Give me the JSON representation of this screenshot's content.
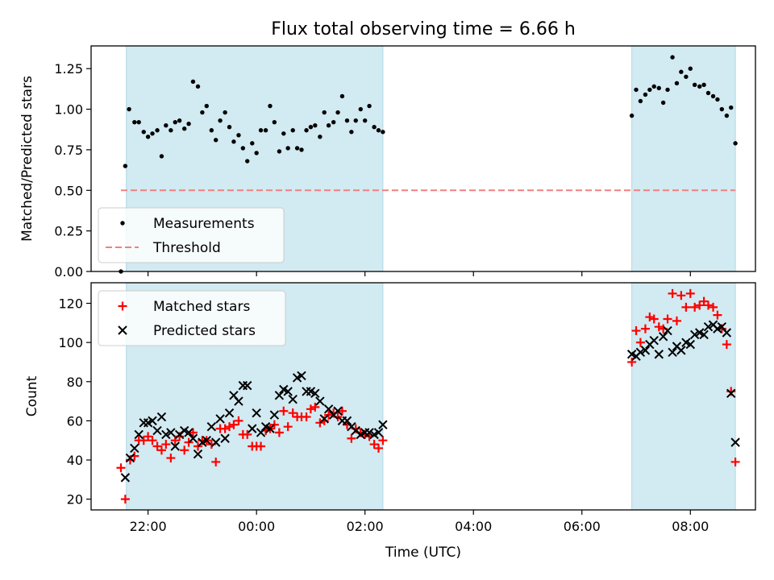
{
  "title": "Flux total observing time = 6.66 h",
  "colors": {
    "shade": "#add8e6",
    "measurement": "#000000",
    "threshold": "#f08080",
    "matched": "#ff0000",
    "predicted": "#000000"
  },
  "x_axis": {
    "label": "Time (UTC)",
    "unit": "hours since 00:00 UTC (negative = previous day)",
    "range": [
      -3.05,
      9.2
    ],
    "ticks": [
      {
        "value": -2,
        "label": "22:00"
      },
      {
        "value": 0,
        "label": "00:00"
      },
      {
        "value": 2,
        "label": "02:00"
      },
      {
        "value": 4,
        "label": "04:00"
      },
      {
        "value": 6,
        "label": "06:00"
      },
      {
        "value": 8,
        "label": "08:00"
      }
    ]
  },
  "shaded_intervals": [
    [
      -2.4,
      2.33
    ],
    [
      6.92,
      8.83
    ]
  ],
  "chart_data": [
    {
      "type": "scatter",
      "title": "Flux total observing time = 6.66 h",
      "ylabel": "Matched/Predicted stars",
      "xlabel": "",
      "ylim": [
        0,
        1.39
      ],
      "yticks": [
        "0.00",
        "0.25",
        "0.50",
        "0.75",
        "1.00",
        "1.25"
      ],
      "legend": {
        "position": "lower-left",
        "entries": [
          "Measurements",
          "Threshold"
        ]
      },
      "threshold": {
        "name": "Threshold",
        "value": 0.5,
        "x_range": [
          -2.5,
          8.83
        ]
      },
      "series": [
        {
          "name": "Measurements",
          "marker": "dot",
          "points": [
            [
              -2.5,
              0.0
            ],
            [
              -2.42,
              0.65
            ],
            [
              -2.35,
              1.0
            ],
            [
              -2.25,
              0.92
            ],
            [
              -2.17,
              0.92
            ],
            [
              -2.08,
              0.86
            ],
            [
              -2.0,
              0.83
            ],
            [
              -1.92,
              0.85
            ],
            [
              -1.83,
              0.87
            ],
            [
              -1.75,
              0.71
            ],
            [
              -1.67,
              0.9
            ],
            [
              -1.58,
              0.87
            ],
            [
              -1.5,
              0.92
            ],
            [
              -1.42,
              0.93
            ],
            [
              -1.33,
              0.88
            ],
            [
              -1.25,
              0.91
            ],
            [
              -1.17,
              1.17
            ],
            [
              -1.08,
              1.14
            ],
            [
              -1.0,
              0.98
            ],
            [
              -0.92,
              1.02
            ],
            [
              -0.83,
              0.87
            ],
            [
              -0.75,
              0.81
            ],
            [
              -0.67,
              0.93
            ],
            [
              -0.58,
              0.98
            ],
            [
              -0.5,
              0.89
            ],
            [
              -0.42,
              0.8
            ],
            [
              -0.33,
              0.84
            ],
            [
              -0.25,
              0.76
            ],
            [
              -0.17,
              0.68
            ],
            [
              -0.08,
              0.79
            ],
            [
              0.0,
              0.73
            ],
            [
              0.08,
              0.87
            ],
            [
              0.17,
              0.87
            ],
            [
              0.25,
              1.02
            ],
            [
              0.33,
              0.92
            ],
            [
              0.42,
              0.74
            ],
            [
              0.5,
              0.85
            ],
            [
              0.58,
              0.76
            ],
            [
              0.67,
              0.87
            ],
            [
              0.75,
              0.76
            ],
            [
              0.83,
              0.75
            ],
            [
              0.92,
              0.87
            ],
            [
              1.0,
              0.89
            ],
            [
              1.08,
              0.9
            ],
            [
              1.17,
              0.83
            ],
            [
              1.25,
              0.98
            ],
            [
              1.33,
              0.9
            ],
            [
              1.42,
              0.92
            ],
            [
              1.5,
              0.98
            ],
            [
              1.58,
              1.08
            ],
            [
              1.67,
              0.93
            ],
            [
              1.75,
              0.86
            ],
            [
              1.83,
              0.93
            ],
            [
              1.92,
              1.0
            ],
            [
              2.0,
              0.93
            ],
            [
              2.08,
              1.02
            ],
            [
              2.17,
              0.89
            ],
            [
              2.25,
              0.87
            ],
            [
              2.33,
              0.86
            ],
            [
              6.92,
              0.96
            ],
            [
              7.0,
              1.12
            ],
            [
              7.08,
              1.05
            ],
            [
              7.17,
              1.09
            ],
            [
              7.25,
              1.12
            ],
            [
              7.33,
              1.14
            ],
            [
              7.42,
              1.13
            ],
            [
              7.5,
              1.04
            ],
            [
              7.58,
              1.12
            ],
            [
              7.67,
              1.32
            ],
            [
              7.75,
              1.16
            ],
            [
              7.83,
              1.23
            ],
            [
              7.92,
              1.2
            ],
            [
              8.0,
              1.25
            ],
            [
              8.08,
              1.15
            ],
            [
              8.17,
              1.14
            ],
            [
              8.25,
              1.15
            ],
            [
              8.33,
              1.1
            ],
            [
              8.42,
              1.08
            ],
            [
              8.5,
              1.06
            ],
            [
              8.58,
              1.0
            ],
            [
              8.67,
              0.96
            ],
            [
              8.75,
              1.01
            ],
            [
              8.83,
              0.79
            ]
          ]
        }
      ]
    },
    {
      "type": "scatter",
      "title": "",
      "ylabel": "Count",
      "xlabel": "Time (UTC)",
      "ylim": [
        14.5,
        130.5
      ],
      "yticks": [
        "20",
        "40",
        "60",
        "80",
        "100",
        "120"
      ],
      "legend": {
        "position": "top-left",
        "entries": [
          "Matched stars",
          "Predicted stars"
        ]
      },
      "series": [
        {
          "name": "Matched stars",
          "marker": "plus",
          "points": [
            [
              -2.5,
              36
            ],
            [
              -2.42,
              20
            ],
            [
              -2.33,
              40
            ],
            [
              -2.25,
              42
            ],
            [
              -2.17,
              50
            ],
            [
              -2.08,
              50
            ],
            [
              -2.0,
              52
            ],
            [
              -1.92,
              50
            ],
            [
              -1.83,
              47
            ],
            [
              -1.75,
              45
            ],
            [
              -1.67,
              48
            ],
            [
              -1.58,
              41
            ],
            [
              -1.5,
              50
            ],
            [
              -1.42,
              52
            ],
            [
              -1.33,
              45
            ],
            [
              -1.25,
              49
            ],
            [
              -1.17,
              54
            ],
            [
              -1.08,
              47
            ],
            [
              -1.0,
              50
            ],
            [
              -0.92,
              50
            ],
            [
              -0.83,
              48
            ],
            [
              -0.75,
              39
            ],
            [
              -0.67,
              56
            ],
            [
              -0.58,
              56
            ],
            [
              -0.5,
              57
            ],
            [
              -0.42,
              58
            ],
            [
              -0.33,
              60
            ],
            [
              -0.25,
              53
            ],
            [
              -0.17,
              53
            ],
            [
              -0.08,
              47
            ],
            [
              0.0,
              47
            ],
            [
              0.08,
              47
            ],
            [
              0.17,
              55
            ],
            [
              0.25,
              56
            ],
            [
              0.33,
              58
            ],
            [
              0.42,
              54
            ],
            [
              0.5,
              65
            ],
            [
              0.58,
              57
            ],
            [
              0.67,
              64
            ],
            [
              0.75,
              62
            ],
            [
              0.83,
              62
            ],
            [
              0.92,
              62
            ],
            [
              1.0,
              66
            ],
            [
              1.08,
              67
            ],
            [
              1.17,
              59
            ],
            [
              1.25,
              60
            ],
            [
              1.33,
              63
            ],
            [
              1.42,
              64
            ],
            [
              1.5,
              62
            ],
            [
              1.58,
              65
            ],
            [
              1.67,
              58
            ],
            [
              1.75,
              51
            ],
            [
              1.83,
              56
            ],
            [
              1.92,
              54
            ],
            [
              2.0,
              53
            ],
            [
              2.08,
              52
            ],
            [
              2.17,
              48
            ],
            [
              2.25,
              46
            ],
            [
              2.33,
              50
            ],
            [
              6.92,
              90
            ],
            [
              7.0,
              106
            ],
            [
              7.08,
              100
            ],
            [
              7.17,
              107
            ],
            [
              7.25,
              113
            ],
            [
              7.33,
              112
            ],
            [
              7.42,
              108
            ],
            [
              7.5,
              107
            ],
            [
              7.58,
              112
            ],
            [
              7.67,
              125
            ],
            [
              7.75,
              111
            ],
            [
              7.83,
              124
            ],
            [
              7.92,
              118
            ],
            [
              8.0,
              125
            ],
            [
              8.08,
              118
            ],
            [
              8.17,
              119
            ],
            [
              8.25,
              121
            ],
            [
              8.33,
              119
            ],
            [
              8.42,
              118
            ],
            [
              8.5,
              114
            ],
            [
              8.58,
              107
            ],
            [
              8.67,
              99
            ],
            [
              8.75,
              75
            ],
            [
              8.83,
              39
            ]
          ]
        },
        {
          "name": "Predicted stars",
          "marker": "x",
          "points": [
            [
              -2.42,
              31
            ],
            [
              -2.33,
              41
            ],
            [
              -2.25,
              46
            ],
            [
              -2.17,
              53
            ],
            [
              -2.08,
              59
            ],
            [
              -2.0,
              59
            ],
            [
              -1.92,
              60
            ],
            [
              -1.83,
              55
            ],
            [
              -1.75,
              62
            ],
            [
              -1.67,
              53
            ],
            [
              -1.58,
              54
            ],
            [
              -1.5,
              47
            ],
            [
              -1.42,
              53
            ],
            [
              -1.33,
              55
            ],
            [
              -1.25,
              54
            ],
            [
              -1.17,
              51
            ],
            [
              -1.08,
              43
            ],
            [
              -1.0,
              49
            ],
            [
              -0.92,
              50
            ],
            [
              -0.83,
              57
            ],
            [
              -0.75,
              49
            ],
            [
              -0.67,
              61
            ],
            [
              -0.58,
              51
            ],
            [
              -0.5,
              64
            ],
            [
              -0.42,
              73
            ],
            [
              -0.33,
              70
            ],
            [
              -0.25,
              78
            ],
            [
              -0.17,
              78
            ],
            [
              -0.08,
              56
            ],
            [
              0.0,
              64
            ],
            [
              0.08,
              54
            ],
            [
              0.17,
              57
            ],
            [
              0.25,
              56
            ],
            [
              0.33,
              63
            ],
            [
              0.42,
              73
            ],
            [
              0.5,
              76
            ],
            [
              0.58,
              75
            ],
            [
              0.67,
              71
            ],
            [
              0.75,
              82
            ],
            [
              0.83,
              83
            ],
            [
              0.92,
              75
            ],
            [
              1.0,
              75
            ],
            [
              1.08,
              74
            ],
            [
              1.17,
              70
            ],
            [
              1.25,
              61
            ],
            [
              1.33,
              66
            ],
            [
              1.42,
              63
            ],
            [
              1.5,
              65
            ],
            [
              1.58,
              60
            ],
            [
              1.67,
              60
            ],
            [
              1.75,
              57
            ],
            [
              1.83,
              55
            ],
            [
              1.92,
              53
            ],
            [
              2.0,
              54
            ],
            [
              2.08,
              54
            ],
            [
              2.17,
              53
            ],
            [
              2.25,
              54
            ],
            [
              2.33,
              58
            ],
            [
              6.92,
              94
            ],
            [
              7.0,
              93
            ],
            [
              7.08,
              95
            ],
            [
              7.17,
              96
            ],
            [
              7.25,
              99
            ],
            [
              7.33,
              101
            ],
            [
              7.42,
              94
            ],
            [
              7.5,
              103
            ],
            [
              7.58,
              106
            ],
            [
              7.67,
              95
            ],
            [
              7.75,
              98
            ],
            [
              7.83,
              96
            ],
            [
              7.92,
              100
            ],
            [
              8.0,
              99
            ],
            [
              8.08,
              104
            ],
            [
              8.17,
              105
            ],
            [
              8.25,
              104
            ],
            [
              8.33,
              108
            ],
            [
              8.42,
              109
            ],
            [
              8.5,
              107
            ],
            [
              8.58,
              108
            ],
            [
              8.67,
              105
            ],
            [
              8.75,
              74
            ],
            [
              8.83,
              49
            ]
          ]
        }
      ]
    }
  ]
}
